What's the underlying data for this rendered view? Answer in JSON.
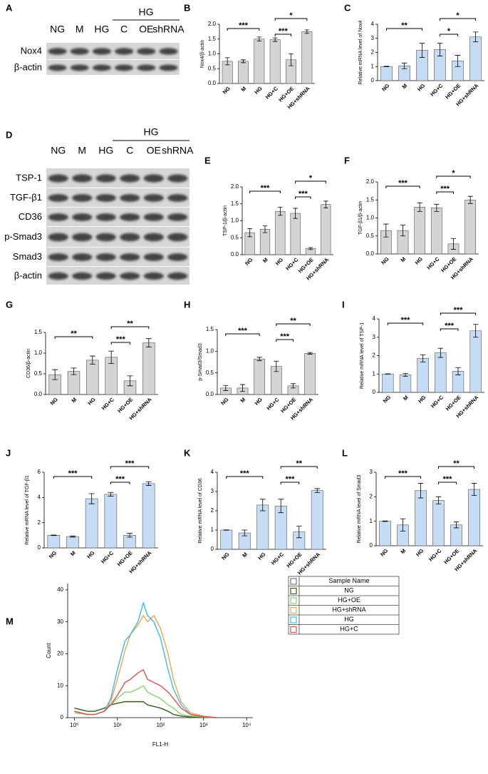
{
  "blots": [
    {
      "label": "A",
      "group": "HG",
      "lanes": [
        "NG",
        "M",
        "HG",
        "C",
        "OE",
        "shRNA"
      ],
      "rows": [
        "Nox4",
        "β-actin"
      ]
    },
    {
      "label": "D",
      "group": "HG",
      "lanes": [
        "NG",
        "M",
        "HG",
        "C",
        "OE",
        "shRNA"
      ],
      "rows": [
        "TSP-1",
        "TGF-β1",
        "CD36",
        "p-Smad3",
        "Smad3",
        "β-actin"
      ]
    }
  ],
  "chart_data": [
    {
      "type": "bar",
      "label": "B",
      "ylabel": "Nox4/β-actin",
      "color": "#d4d4d4",
      "categories": [
        "NG",
        "M",
        "HG",
        "HG+C",
        "HG+OE",
        "HG+shRNA"
      ],
      "values": [
        0.75,
        0.75,
        1.5,
        1.48,
        0.8,
        1.75
      ],
      "errors": [
        0.12,
        0.05,
        0.07,
        0.06,
        0.2,
        0.06
      ],
      "ylim": [
        0,
        2
      ],
      "yticks": [
        {
          "value": 0,
          "label": "0.0"
        },
        0.5,
        {
          "value": 1,
          "label": "1.0"
        },
        1.5,
        {
          "value": 2,
          "label": "2.0"
        }
      ],
      "comparisons": [
        {
          "between": [
            0,
            2
          ],
          "label": "***"
        },
        {
          "between": [
            3,
            4
          ],
          "label": "***"
        },
        {
          "between": [
            3,
            5
          ],
          "label": "*"
        }
      ]
    },
    {
      "type": "bar",
      "label": "C",
      "ylabel": "Relative mRNA level of Nox4",
      "color": "#c6dcf5",
      "categories": [
        "NG",
        "M",
        "HG",
        "HG+C",
        "HG+OE",
        "HG+shRNA"
      ],
      "values": [
        1.0,
        1.05,
        2.15,
        2.2,
        1.4,
        3.1
      ],
      "errors": [
        0.02,
        0.2,
        0.5,
        0.45,
        0.4,
        0.35
      ],
      "ylim": [
        0,
        4
      ],
      "yticks": [
        0,
        1,
        2,
        3,
        4
      ],
      "comparisons": [
        {
          "between": [
            0,
            2
          ],
          "label": "**"
        },
        {
          "between": [
            3,
            4
          ],
          "label": "*"
        },
        {
          "between": [
            3,
            5
          ],
          "label": "*"
        }
      ]
    },
    {
      "type": "bar",
      "label": "E",
      "ylabel": "TSP-1/β-actin",
      "color": "#d4d4d4",
      "categories": [
        "NG",
        "M",
        "HG",
        "HG+C",
        "HG+OE",
        "HG+shRNA"
      ],
      "values": [
        0.65,
        0.75,
        1.28,
        1.22,
        0.18,
        1.48
      ],
      "errors": [
        0.12,
        0.1,
        0.12,
        0.15,
        0.03,
        0.1
      ],
      "ylim": [
        0,
        2
      ],
      "yticks": [
        {
          "value": 0,
          "label": "0.0"
        },
        0.5,
        {
          "value": 1,
          "label": "1.0"
        },
        1.5,
        {
          "value": 2,
          "label": "2.0"
        }
      ],
      "comparisons": [
        {
          "between": [
            0,
            2
          ],
          "label": "***"
        },
        {
          "between": [
            3,
            4
          ],
          "label": "***"
        },
        {
          "between": [
            3,
            5
          ],
          "label": "*"
        }
      ]
    },
    {
      "type": "bar",
      "label": "F",
      "ylabel": "TGF-β1/β-actin",
      "color": "#d4d4d4",
      "categories": [
        "NG",
        "M",
        "HG",
        "HG+C",
        "HG+OE",
        "HG+shRNA"
      ],
      "values": [
        0.65,
        0.65,
        1.3,
        1.28,
        0.28,
        1.5
      ],
      "errors": [
        0.18,
        0.15,
        0.12,
        0.1,
        0.15,
        0.1
      ],
      "ylim": [
        0,
        2
      ],
      "yticks": [
        {
          "value": 0,
          "label": "0.0"
        },
        0.5,
        {
          "value": 1,
          "label": "1.0"
        },
        1.5,
        {
          "value": 2,
          "label": "2.0"
        }
      ],
      "comparisons": [
        {
          "between": [
            0,
            2
          ],
          "label": "***"
        },
        {
          "between": [
            3,
            4
          ],
          "label": "***"
        },
        {
          "between": [
            3,
            5
          ],
          "label": "*"
        }
      ]
    },
    {
      "type": "bar",
      "label": "G",
      "ylabel": "CD36/β-actin",
      "color": "#d4d4d4",
      "categories": [
        "NG",
        "M",
        "HG",
        "HG+C",
        "HG+OE",
        "HG+shRNA"
      ],
      "values": [
        0.48,
        0.56,
        0.83,
        0.9,
        0.33,
        1.25
      ],
      "errors": [
        0.12,
        0.08,
        0.1,
        0.15,
        0.12,
        0.1
      ],
      "ylim": [
        0,
        1.5
      ],
      "yticks": [
        {
          "value": 0,
          "label": "0.0"
        },
        0.5,
        {
          "value": 1,
          "label": "1.0"
        },
        1.5
      ],
      "comparisons": [
        {
          "between": [
            0,
            2
          ],
          "label": "**"
        },
        {
          "between": [
            3,
            4
          ],
          "label": "***"
        },
        {
          "between": [
            3,
            5
          ],
          "label": "**"
        }
      ]
    },
    {
      "type": "bar",
      "label": "H",
      "ylabel": "p-Smad3/Smad3",
      "color": "#d4d4d4",
      "categories": [
        "NG",
        "M",
        "HG",
        "HG+C",
        "HG+OE",
        "HG+shRNA"
      ],
      "values": [
        0.15,
        0.15,
        0.82,
        0.65,
        0.2,
        0.95
      ],
      "errors": [
        0.06,
        0.08,
        0.04,
        0.12,
        0.05,
        0.02
      ],
      "ylim": [
        0,
        1.5
      ],
      "yticks": [
        {
          "value": 0,
          "label": "0.0"
        },
        0.5,
        {
          "value": 1,
          "label": "1.0"
        },
        1.5
      ],
      "comparisons": [
        {
          "between": [
            0,
            2
          ],
          "label": "***"
        },
        {
          "between": [
            3,
            4
          ],
          "label": "***"
        },
        {
          "between": [
            3,
            5
          ],
          "label": "**"
        }
      ]
    },
    {
      "type": "bar",
      "label": "I",
      "ylabel": "Relative mRNA level of TSP-1",
      "color": "#c6dcf5",
      "categories": [
        "NG",
        "M",
        "HG",
        "HG+C",
        "HG+OE",
        "HG+shRNA"
      ],
      "values": [
        1.0,
        0.95,
        1.85,
        2.15,
        1.15,
        3.35
      ],
      "errors": [
        0.01,
        0.08,
        0.2,
        0.25,
        0.2,
        0.35
      ],
      "ylim": [
        0,
        4
      ],
      "yticks": [
        0,
        1,
        2,
        3,
        4
      ],
      "comparisons": [
        {
          "between": [
            0,
            2
          ],
          "label": "***"
        },
        {
          "between": [
            3,
            4
          ],
          "label": "***"
        },
        {
          "between": [
            3,
            5
          ],
          "label": "***"
        }
      ]
    },
    {
      "type": "bar",
      "label": "J",
      "ylabel": "Relative mRNA level of TGF-β1",
      "color": "#c6dcf5",
      "categories": [
        "NG",
        "M",
        "HG",
        "HG+C",
        "HG+OE",
        "HG+shRNA"
      ],
      "values": [
        1.0,
        0.9,
        3.9,
        4.25,
        1.0,
        5.1
      ],
      "errors": [
        0.02,
        0.05,
        0.4,
        0.15,
        0.15,
        0.15
      ],
      "ylim": [
        0,
        6
      ],
      "yticks": [
        0,
        2,
        4,
        6
      ],
      "comparisons": [
        {
          "between": [
            0,
            2
          ],
          "label": "***"
        },
        {
          "between": [
            3,
            4
          ],
          "label": "***"
        },
        {
          "between": [
            3,
            5
          ],
          "label": "***"
        }
      ]
    },
    {
      "type": "bar",
      "label": "K",
      "ylabel": "Relative mRNA level of CD36",
      "color": "#c6dcf5",
      "categories": [
        "NG",
        "M",
        "HG",
        "HG+C",
        "HG+OE",
        "HG+shRNA"
      ],
      "values": [
        1.0,
        0.85,
        2.3,
        2.25,
        0.9,
        3.05
      ],
      "errors": [
        0.01,
        0.15,
        0.3,
        0.35,
        0.3,
        0.1
      ],
      "ylim": [
        0,
        4
      ],
      "yticks": [
        0,
        1,
        2,
        3,
        4
      ],
      "comparisons": [
        {
          "between": [
            0,
            2
          ],
          "label": "***"
        },
        {
          "between": [
            3,
            4
          ],
          "label": "***"
        },
        {
          "between": [
            3,
            5
          ],
          "label": "**"
        }
      ]
    },
    {
      "type": "bar",
      "label": "L",
      "ylabel": "Relative mRNA level of Smad3",
      "color": "#c6dcf5",
      "categories": [
        "NG",
        "M",
        "HG",
        "HG+C",
        "HG+OE",
        "HG+shRNA"
      ],
      "values": [
        1.0,
        0.85,
        2.25,
        1.85,
        0.85,
        2.3
      ],
      "errors": [
        0.01,
        0.25,
        0.3,
        0.15,
        0.12,
        0.25
      ],
      "ylim": [
        0,
        3
      ],
      "yticks": [
        0,
        1,
        2,
        3
      ],
      "comparisons": [
        {
          "between": [
            0,
            2
          ],
          "label": "***"
        },
        {
          "between": [
            3,
            4
          ],
          "label": "***"
        },
        {
          "between": [
            3,
            5
          ],
          "label": "**"
        }
      ]
    },
    {
      "type": "line",
      "label": "M",
      "xlabel": "FL1-H",
      "ylabel": "Count",
      "log_x": true,
      "legend": "right",
      "legend_title": "Sample Name",
      "x": [
        1,
        2,
        3,
        5,
        7,
        10,
        15,
        20,
        30,
        40,
        50,
        70,
        100,
        150,
        200,
        300,
        500,
        1000,
        2000
      ],
      "series": [
        {
          "name": "NG",
          "color": "#2f5f1f",
          "values": [
            3,
            2,
            2,
            3,
            4,
            4.5,
            5,
            5,
            5,
            5,
            4,
            3.5,
            3,
            2,
            1,
            0.5,
            0.2,
            0.1,
            0
          ]
        },
        {
          "name": "HG+OE",
          "color": "#86d66f",
          "values": [
            1.5,
            1,
            1,
            2,
            4,
            6,
            8,
            8,
            9,
            10,
            8,
            7,
            6,
            4,
            3,
            1,
            0.5,
            0.2,
            0
          ]
        },
        {
          "name": "HG+shRNA",
          "color": "#f0a455",
          "values": [
            2,
            1,
            1,
            2,
            5,
            12,
            21,
            26,
            29,
            32,
            30,
            32,
            28,
            20,
            12,
            5,
            1.5,
            0.5,
            0
          ]
        },
        {
          "name": "HG",
          "color": "#35bdec",
          "values": [
            2,
            1,
            1,
            2,
            6,
            15,
            24,
            26,
            30,
            36,
            32,
            30,
            25,
            15,
            9,
            4,
            1,
            0.3,
            0
          ]
        },
        {
          "name": "HG+C",
          "color": "#e2504f",
          "values": [
            2,
            1,
            1,
            2,
            4,
            7,
            11,
            12,
            14,
            15,
            12,
            11,
            10,
            8,
            6,
            3,
            1,
            0.3,
            0
          ]
        }
      ],
      "xlim": [
        0.7,
        14000
      ],
      "xticks": [
        {
          "value": 1,
          "label": "10⁰"
        },
        {
          "value": 10,
          "label": "10¹"
        },
        {
          "value": 100,
          "label": "10²"
        },
        {
          "value": 1000,
          "label": "10³"
        },
        {
          "value": 10000,
          "label": "10⁴"
        }
      ],
      "ylim": [
        0,
        42
      ],
      "yticks": [
        0,
        10,
        20,
        30,
        40
      ]
    }
  ]
}
